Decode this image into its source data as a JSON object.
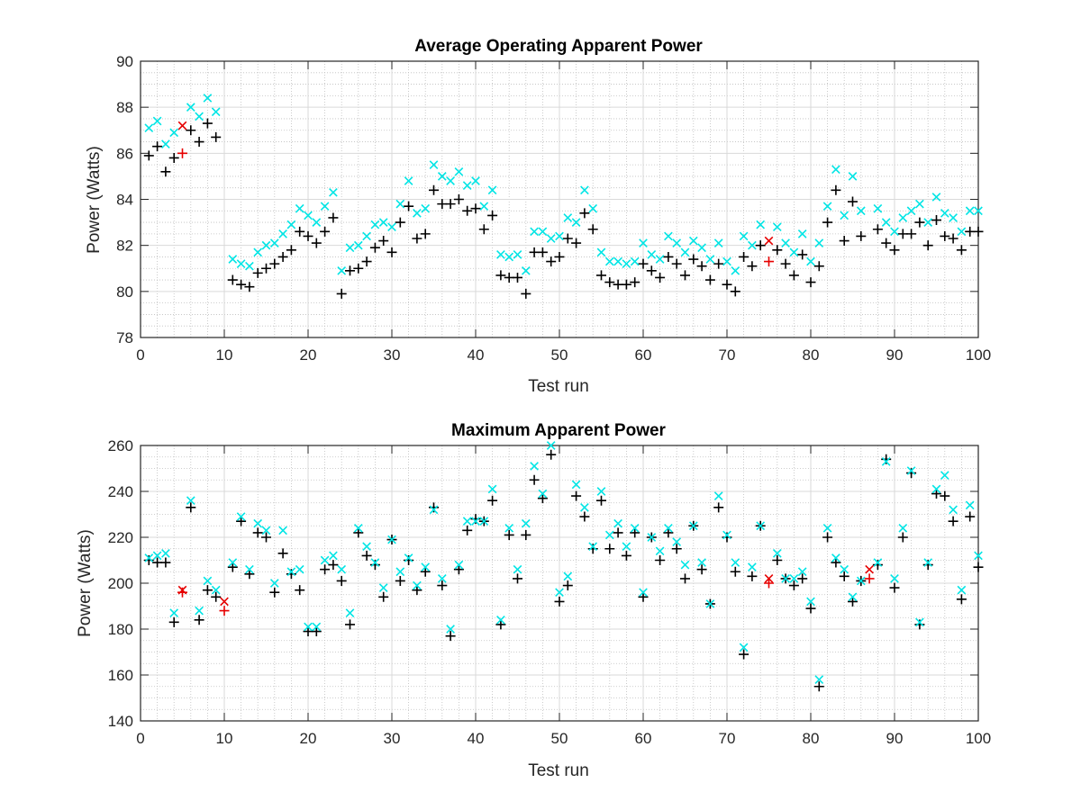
{
  "figure": {
    "background": "#ffffff",
    "colors": {
      "plus": "#000000",
      "cross": "#00e5e5",
      "highlight": "#e60000",
      "axis": "#262626",
      "major_grid": "#d9d9d9",
      "minor_grid": "#bfbfbf"
    }
  },
  "chart_data": [
    {
      "type": "scatter",
      "title": "Average Operating Apparent Power",
      "xlabel": "Test run",
      "ylabel": "Power (Watts)",
      "xlim": [
        0,
        100
      ],
      "ylim": [
        78,
        90
      ],
      "xticks": [
        0,
        10,
        20,
        30,
        40,
        50,
        60,
        70,
        80,
        90,
        100
      ],
      "yticks": [
        78,
        80,
        82,
        84,
        86,
        88,
        90
      ],
      "grid": true,
      "minor_grid": true,
      "legend": "none",
      "highlight_runs": [
        5,
        75
      ],
      "series": [
        {
          "marker": "+",
          "color": "#000000",
          "highlight_color": "#e60000",
          "x": [
            1,
            2,
            3,
            4,
            5,
            6,
            7,
            8,
            9,
            11,
            12,
            13,
            14,
            15,
            16,
            17,
            18,
            19,
            20,
            21,
            22,
            23,
            24,
            25,
            26,
            27,
            28,
            29,
            30,
            31,
            32,
            33,
            34,
            35,
            36,
            37,
            38,
            39,
            40,
            41,
            42,
            43,
            44,
            45,
            46,
            47,
            48,
            49,
            50,
            51,
            52,
            53,
            54,
            55,
            56,
            57,
            58,
            59,
            60,
            61,
            62,
            63,
            64,
            65,
            66,
            67,
            68,
            69,
            70,
            71,
            72,
            73,
            74,
            75,
            76,
            77,
            78,
            79,
            80,
            81,
            82,
            83,
            84,
            85,
            86,
            88,
            89,
            90,
            91,
            92,
            93,
            94,
            95,
            96,
            97,
            98,
            99,
            100
          ],
          "y": [
            85.9,
            86.3,
            85.2,
            85.8,
            86.0,
            87.0,
            86.5,
            87.3,
            86.7,
            80.5,
            80.3,
            80.2,
            80.8,
            81.0,
            81.2,
            81.5,
            81.8,
            82.6,
            82.4,
            82.1,
            82.6,
            83.2,
            79.9,
            80.9,
            81.0,
            81.3,
            81.9,
            82.2,
            81.7,
            83.0,
            83.7,
            82.3,
            82.5,
            84.4,
            83.8,
            83.8,
            84.0,
            83.5,
            83.6,
            82.7,
            83.3,
            80.7,
            80.6,
            80.6,
            79.9,
            81.7,
            81.7,
            81.3,
            81.5,
            82.3,
            82.1,
            83.4,
            82.7,
            80.7,
            80.4,
            80.3,
            80.3,
            80.4,
            81.2,
            80.9,
            80.6,
            81.5,
            81.2,
            80.7,
            81.4,
            81.1,
            80.5,
            81.2,
            80.3,
            80.0,
            81.5,
            81.1,
            82.0,
            81.3,
            81.8,
            81.2,
            80.7,
            81.6,
            80.4,
            81.1,
            83.0,
            84.4,
            82.2,
            83.9,
            82.4,
            82.7,
            82.1,
            81.8,
            82.5,
            82.5,
            83.0,
            82.0,
            83.1,
            82.4,
            82.3,
            81.8,
            82.6,
            82.6
          ]
        },
        {
          "marker": "x",
          "color": "#00e5e5",
          "highlight_color": "#e60000",
          "x": [
            1,
            2,
            3,
            4,
            5,
            6,
            7,
            8,
            9,
            11,
            12,
            13,
            14,
            15,
            16,
            17,
            18,
            19,
            20,
            21,
            22,
            23,
            24,
            25,
            26,
            27,
            28,
            29,
            30,
            31,
            32,
            33,
            34,
            35,
            36,
            37,
            38,
            39,
            40,
            41,
            42,
            43,
            44,
            45,
            46,
            47,
            48,
            49,
            50,
            51,
            52,
            53,
            54,
            55,
            56,
            57,
            58,
            59,
            60,
            61,
            62,
            63,
            64,
            65,
            66,
            67,
            68,
            69,
            70,
            71,
            72,
            73,
            74,
            75,
            76,
            77,
            78,
            79,
            80,
            81,
            82,
            83,
            84,
            85,
            86,
            88,
            89,
            90,
            91,
            92,
            93,
            94,
            95,
            96,
            97,
            98,
            99,
            100
          ],
          "y": [
            87.1,
            87.4,
            86.4,
            86.9,
            87.2,
            88.0,
            87.6,
            88.4,
            87.8,
            81.4,
            81.2,
            81.1,
            81.7,
            82.0,
            82.1,
            82.5,
            82.9,
            83.6,
            83.3,
            83.0,
            83.7,
            84.3,
            80.9,
            81.9,
            82.0,
            82.4,
            82.9,
            83.0,
            82.8,
            83.8,
            84.8,
            83.4,
            83.6,
            85.5,
            85.0,
            84.8,
            85.2,
            84.6,
            84.8,
            83.7,
            84.4,
            81.6,
            81.5,
            81.6,
            80.9,
            82.6,
            82.6,
            82.3,
            82.4,
            83.2,
            83.0,
            84.4,
            83.6,
            81.7,
            81.3,
            81.3,
            81.2,
            81.3,
            82.1,
            81.6,
            81.4,
            82.4,
            82.1,
            81.7,
            82.2,
            81.9,
            81.4,
            82.1,
            81.3,
            80.9,
            82.4,
            82.0,
            82.9,
            82.2,
            82.8,
            82.1,
            81.7,
            82.5,
            81.3,
            82.1,
            83.7,
            85.3,
            83.3,
            85.0,
            83.5,
            83.6,
            83.0,
            82.6,
            83.2,
            83.5,
            83.8,
            83.0,
            84.1,
            83.4,
            83.2,
            82.6,
            83.5,
            83.5
          ]
        }
      ]
    },
    {
      "type": "scatter",
      "title": "Maximum Apparent Power",
      "xlabel": "Test run",
      "ylabel": "Power (Watts)",
      "xlim": [
        0,
        100
      ],
      "ylim": [
        140,
        260
      ],
      "xticks": [
        0,
        10,
        20,
        30,
        40,
        50,
        60,
        70,
        80,
        90,
        100
      ],
      "yticks": [
        140,
        160,
        180,
        200,
        220,
        240,
        260
      ],
      "grid": true,
      "minor_grid": true,
      "legend": "none",
      "highlight_runs": [
        5,
        10,
        75,
        87
      ],
      "series": [
        {
          "marker": "+",
          "color": "#000000",
          "highlight_color": "#e60000",
          "x": [
            1,
            2,
            3,
            4,
            5,
            6,
            7,
            8,
            9,
            10,
            11,
            12,
            13,
            14,
            15,
            16,
            17,
            18,
            19,
            20,
            21,
            22,
            23,
            24,
            25,
            26,
            27,
            28,
            29,
            30,
            31,
            32,
            33,
            34,
            35,
            36,
            37,
            38,
            39,
            40,
            41,
            42,
            43,
            44,
            45,
            46,
            47,
            48,
            49,
            50,
            51,
            52,
            53,
            54,
            55,
            56,
            57,
            58,
            59,
            60,
            61,
            62,
            63,
            64,
            65,
            66,
            67,
            68,
            69,
            70,
            71,
            72,
            73,
            74,
            75,
            76,
            77,
            78,
            79,
            80,
            81,
            82,
            83,
            84,
            85,
            86,
            87,
            88,
            89,
            90,
            91,
            92,
            93,
            94,
            95,
            96,
            97,
            98,
            99,
            100
          ],
          "y": [
            210,
            209,
            209,
            183,
            196,
            233,
            184,
            197,
            194,
            188,
            207,
            227,
            204,
            222,
            220,
            196,
            213,
            204,
            197,
            179,
            179,
            206,
            208,
            201,
            182,
            222,
            212,
            208,
            194,
            219,
            201,
            210,
            197,
            205,
            233,
            199,
            177,
            206,
            223,
            228,
            227,
            236,
            182,
            221,
            202,
            221,
            245,
            237,
            256,
            192,
            199,
            238,
            229,
            215,
            236,
            215,
            222,
            212,
            222,
            194,
            220,
            210,
            222,
            215,
            202,
            225,
            206,
            191,
            233,
            220,
            205,
            169,
            203,
            225,
            200,
            210,
            202,
            199,
            202,
            189,
            155,
            220,
            209,
            203,
            192,
            201,
            202,
            208,
            254,
            198,
            220,
            248,
            182,
            208,
            239,
            238,
            227,
            193,
            229,
            207
          ]
        },
        {
          "marker": "x",
          "color": "#00e5e5",
          "highlight_color": "#e60000",
          "x": [
            1,
            2,
            3,
            4,
            5,
            6,
            7,
            8,
            9,
            10,
            11,
            12,
            13,
            14,
            15,
            16,
            17,
            18,
            19,
            20,
            21,
            22,
            23,
            24,
            25,
            26,
            27,
            28,
            29,
            30,
            31,
            32,
            33,
            34,
            35,
            36,
            37,
            38,
            39,
            40,
            41,
            42,
            43,
            44,
            45,
            46,
            47,
            48,
            49,
            50,
            51,
            52,
            53,
            54,
            55,
            56,
            57,
            58,
            59,
            60,
            61,
            62,
            63,
            64,
            65,
            66,
            67,
            68,
            69,
            70,
            71,
            72,
            73,
            74,
            75,
            76,
            77,
            78,
            79,
            80,
            81,
            82,
            83,
            84,
            85,
            86,
            87,
            88,
            89,
            90,
            91,
            92,
            93,
            94,
            95,
            96,
            97,
            98,
            99,
            100
          ],
          "y": [
            211,
            212,
            213,
            187,
            197,
            236,
            188,
            201,
            197,
            192,
            209,
            229,
            206,
            226,
            223,
            200,
            223,
            205,
            206,
            181,
            181,
            210,
            212,
            206,
            187,
            224,
            216,
            209,
            198,
            219,
            205,
            211,
            199,
            207,
            232,
            202,
            180,
            208,
            227,
            227,
            227,
            241,
            184,
            224,
            206,
            226,
            251,
            239,
            260,
            196,
            203,
            243,
            233,
            216,
            240,
            221,
            226,
            216,
            224,
            196,
            220,
            214,
            224,
            218,
            208,
            225,
            209,
            191,
            238,
            221,
            209,
            172,
            207,
            225,
            202,
            213,
            202,
            202,
            205,
            192,
            158,
            224,
            211,
            206,
            194,
            201,
            206,
            209,
            253,
            202,
            224,
            249,
            183,
            209,
            241,
            247,
            232,
            197,
            234,
            212
          ]
        }
      ]
    }
  ]
}
